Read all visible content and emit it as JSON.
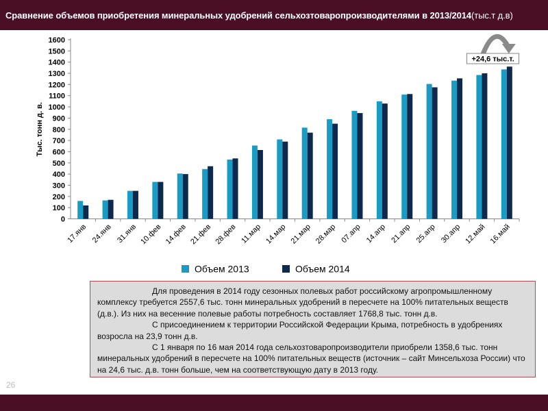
{
  "header": {
    "title": "Сравнение объемов приобретения минеральных удобрений сельхозтоваропроизводителями в 2013/2014",
    "title_unit": "(тыс.т д.в)"
  },
  "page_number": "26",
  "colors": {
    "header_bg": "#4a0f24",
    "series_2013": "#1a9bc4",
    "series_2014": "#0d2a4e"
  },
  "chart_data": {
    "type": "bar",
    "categories": [
      "17.янв",
      "24.янв",
      "31.янв",
      "10.фев",
      "14.фев",
      "21.фев",
      "28.фев",
      "11.мар",
      "14.мар",
      "21.мар",
      "28.мар",
      "07.апр",
      "14.апр",
      "21.апр",
      "25.апр",
      "30.апр",
      "12.май",
      "16.май"
    ],
    "series": [
      {
        "name": "Объем 2013",
        "color": "#1a9bc4",
        "values": [
          160,
          165,
          250,
          330,
          405,
          445,
          530,
          655,
          710,
          815,
          890,
          965,
          1050,
          1110,
          1205,
          1235,
          1285,
          1335
        ]
      },
      {
        "name": "Объем 2014",
        "color": "#0d2a4e",
        "values": [
          120,
          170,
          250,
          330,
          400,
          470,
          540,
          615,
          690,
          770,
          850,
          945,
          1030,
          1115,
          1175,
          1255,
          1300,
          1360
        ]
      }
    ],
    "ylabel": "Тыс. тонн д. в.",
    "ylim": [
      0,
      1600
    ],
    "yticks": [
      0,
      100,
      200,
      300,
      400,
      500,
      600,
      700,
      800,
      900,
      1000,
      1100,
      1200,
      1300,
      1400,
      1500,
      1600
    ],
    "grid": false,
    "legend_position": "bottom",
    "annotation": "+24,6 тыс.т."
  },
  "text_block": {
    "paragraphs": [
      "Для проведения в 2014 году сезонных полевых работ российскому агропромышленному комплексу требуется 2557,6 тыс. тонн минеральных удобрений в пересчете на 100% питательных веществ (д.в.). Из них на весенние полевые работы потребность составляет 1768,8 тыс. тонн д.в.",
      "С присоединением к территории Российской Федерации Крыма, потребность в удобрениях возросла на 23,9 тонн д.в.",
      "С 1 января по 16 мая  2014 года сельхозтоваропроизводители приобрели 1358,6 тыс. тонн минеральных удобрений в пересчете на 100% питательных веществ  (источник – сайт Минсельхоза России) что на 24,6 тыс. д.в. тонн больше, чем на соответствующую дату в 2013 году."
    ]
  }
}
